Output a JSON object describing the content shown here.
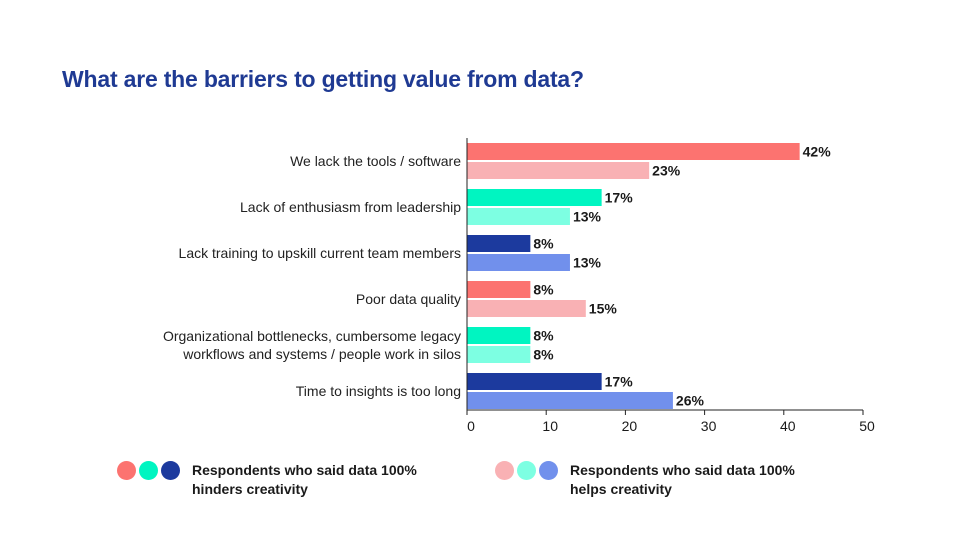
{
  "chart_data": {
    "type": "bar",
    "orientation": "horizontal",
    "title": "What are the barriers to getting value from data?",
    "categories": [
      [
        "We lack the tools / software"
      ],
      [
        "Lack of enthusiasm from leadership"
      ],
      [
        "Lack training to upskill current team members"
      ],
      [
        "Poor data quality"
      ],
      [
        "Organizational bottlenecks, cumbersome legacy",
        "workflows and systems / people work in silos"
      ],
      [
        "Time to insights is too long"
      ]
    ],
    "series": [
      {
        "name": "Respondents who said data 100% hinders creativity",
        "values": [
          42,
          17,
          8,
          8,
          8,
          17
        ],
        "labels": [
          "42%",
          "17%",
          "8%",
          "8%",
          "8%",
          "17%"
        ],
        "colors": [
          "#fc7370",
          "#00f5c1",
          "#1c3a9e",
          "#fc7370",
          "#00f5c1",
          "#1c3a9e"
        ]
      },
      {
        "name": "Respondents who said data 100% helps creativity",
        "values": [
          23,
          13,
          13,
          15,
          8,
          26
        ],
        "labels": [
          "23%",
          "13%",
          "13%",
          "15%",
          "8%",
          "26%"
        ],
        "colors": [
          "#f9b1b4",
          "#7dffe2",
          "#7190ec",
          "#f9b1b4",
          "#7dffe2",
          "#7190ec"
        ]
      }
    ],
    "xlim": [
      0,
      50
    ],
    "xticks": [
      0,
      10,
      20,
      30,
      40,
      50
    ],
    "grid": false,
    "legend_position": "bottom"
  },
  "legend": {
    "hinders": {
      "line1": "Respondents who said data 100%",
      "line2": "hinders creativity",
      "icons": [
        "#fc7370",
        "#00f5c1",
        "#1c3a9e"
      ]
    },
    "helps": {
      "line1": "Respondents who said data 100%",
      "line2": "helps creativity",
      "icons": [
        "#f9b1b4",
        "#7dffe2",
        "#7190ec"
      ]
    }
  }
}
